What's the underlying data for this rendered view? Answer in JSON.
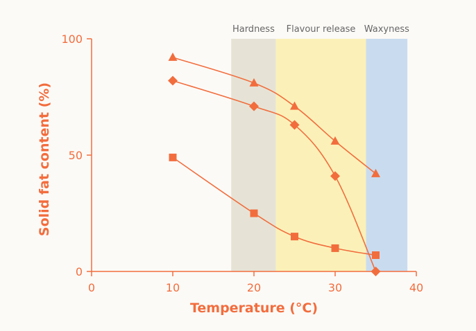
{
  "colors": {
    "accent": "#f26d3d",
    "background": "#fcfaf7",
    "band_hardness": "#e6e3d6",
    "band_flavour": "#fbf1b8",
    "band_waxyness": "#c9dcef"
  },
  "chart_data": {
    "type": "line",
    "title": "",
    "xlabel": "Temperature (°C)",
    "ylabel": "Solid fat content (%)",
    "xlim": [
      0,
      40
    ],
    "ylim": [
      0,
      100
    ],
    "x_ticks": [
      "0",
      "10",
      "20",
      "30",
      "40"
    ],
    "y_ticks": [
      "0",
      "50",
      "100"
    ],
    "grid": false,
    "legend": "none",
    "bands": [
      {
        "label": "Hardness",
        "x_range": [
          17.2,
          22.7
        ]
      },
      {
        "label": "Flavour release",
        "x_range": [
          22.7,
          33.8
        ]
      },
      {
        "label": "Waxyness",
        "x_range": [
          33.8,
          38.9
        ]
      }
    ],
    "series": [
      {
        "marker": "triangle",
        "x": [
          10,
          20,
          25,
          30,
          35
        ],
        "y": [
          92,
          81,
          71,
          56,
          42
        ]
      },
      {
        "marker": "diamond",
        "x": [
          10,
          20,
          25,
          30,
          35
        ],
        "y": [
          82,
          71,
          63,
          41,
          0
        ]
      },
      {
        "marker": "square",
        "x": [
          10,
          20,
          25,
          30,
          35
        ],
        "y": [
          49,
          25,
          15,
          10,
          7
        ]
      }
    ]
  }
}
